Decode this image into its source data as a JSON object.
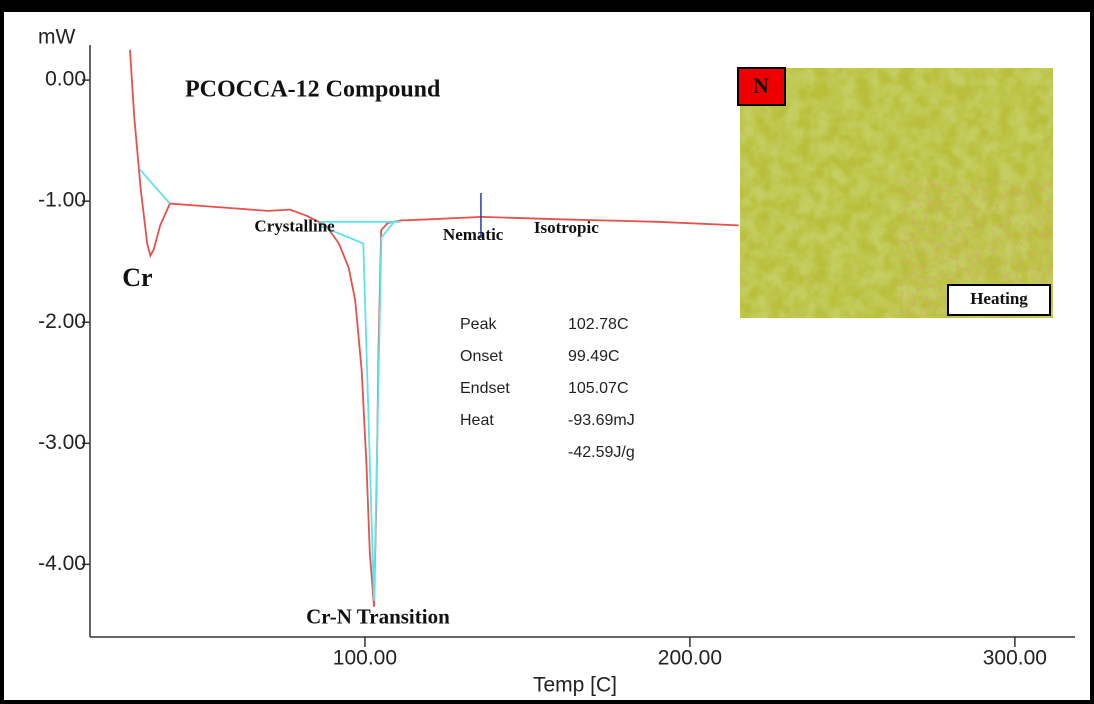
{
  "chart_data": {
    "type": "line",
    "y_unit": "mW",
    "x_label": "Temp  [C]",
    "title": "PCOCCA-12 Compound",
    "xlim": [
      15.4,
      318.5
    ],
    "ylim": [
      -4.6,
      0.29
    ],
    "xticks": [
      {
        "value": 100,
        "label": "100.00"
      },
      {
        "value": 200,
        "label": "200.00"
      },
      {
        "value": 300,
        "label": "300.00"
      }
    ],
    "yticks": [
      {
        "value": 0,
        "label": "0.00"
      },
      {
        "value": -1,
        "label": "-1.00"
      },
      {
        "value": -2,
        "label": "-2.00"
      },
      {
        "value": -3,
        "label": "-3.00"
      },
      {
        "value": -4,
        "label": "-4.00"
      }
    ],
    "series": [
      {
        "color": "#e8504a",
        "x": [
          27.7,
          29,
          31,
          33,
          34,
          35,
          37,
          40,
          50,
          60,
          70,
          77,
          82,
          88,
          92,
          95,
          97,
          99,
          100.5,
          101.5,
          102.78,
          103.5,
          104.2,
          105,
          107,
          111,
          120,
          136,
          160,
          190,
          215
        ],
        "values": [
          0.25,
          -0.3,
          -0.9,
          -1.35,
          -1.45,
          -1.4,
          -1.2,
          -1.02,
          -1.04,
          -1.06,
          -1.08,
          -1.07,
          -1.12,
          -1.2,
          -1.35,
          -1.55,
          -1.82,
          -2.4,
          -3.2,
          -3.9,
          -4.35,
          -3.5,
          -2.2,
          -1.24,
          -1.18,
          -1.16,
          -1.15,
          -1.13,
          -1.15,
          -1.17,
          -1.2
        ]
      },
      {
        "color": "#5fe3e8",
        "x": [
          30.8,
          40,
          40,
          86,
          111,
          111,
          86,
          99.49,
          102.78,
          105.07,
          109
        ],
        "values": [
          -0.74,
          -1.02,
          null,
          -1.17,
          -1.17,
          null,
          -1.2,
          -1.35,
          -4.3,
          -1.3,
          -1.17
        ]
      }
    ],
    "marker_line_x": 135.7,
    "marker_line_color": "#1f3fa8",
    "annotations": [
      {
        "text": "Cr",
        "x": 30,
        "y": -1.65
      },
      {
        "text": "Crystalline",
        "x": 66,
        "y": -1.22
      },
      {
        "text": "Nematic",
        "x": 124,
        "y": -1.29
      },
      {
        "text": "Isotropic",
        "x": 152,
        "y": -1.23
      },
      {
        "text": "Cr-N Transition",
        "x": 104,
        "y": -4.45
      }
    ],
    "results": [
      {
        "label": "Peak",
        "values": [
          "102.78C"
        ]
      },
      {
        "label": "Onset",
        "values": [
          "99.49C"
        ]
      },
      {
        "label": "Endset",
        "values": [
          "105.07C"
        ]
      },
      {
        "label": "Heat",
        "values": [
          "-93.69mJ",
          "-42.59J/g"
        ]
      }
    ],
    "inset": {
      "phase": "N",
      "caption": "Heating"
    }
  }
}
